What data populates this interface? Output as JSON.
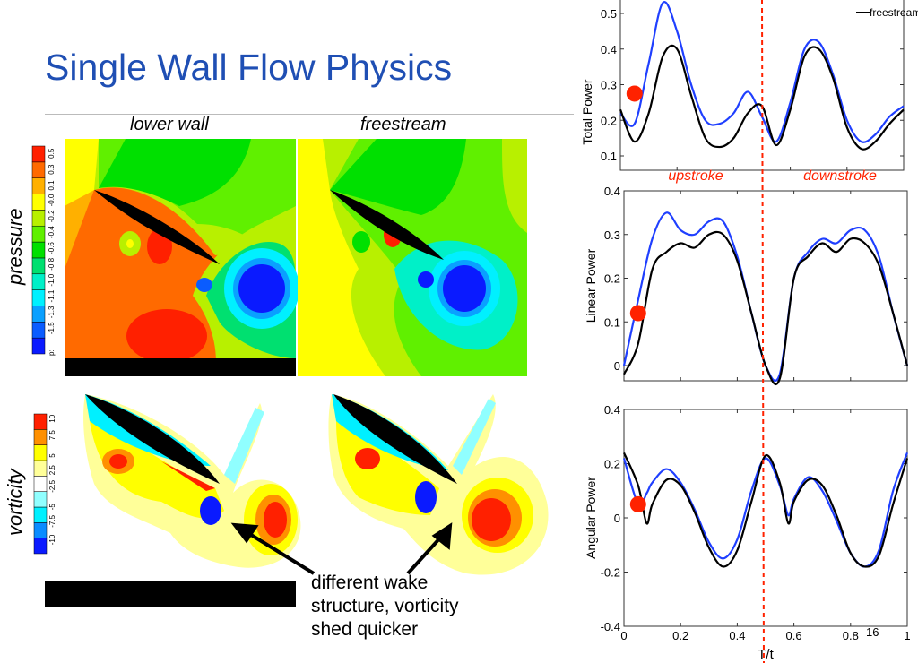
{
  "slide": {
    "title": "Single Wall Flow Physics",
    "column_labels": [
      "lower wall",
      "freestream"
    ],
    "row_labels": [
      "pressure",
      "vorticity"
    ],
    "pressure_colorbar": {
      "prefix": "p:",
      "ticks": [
        "-1.5",
        "-1.3",
        "-1.1",
        "-1.0",
        "-0.8",
        "-0.6",
        "-0.4",
        "-0.2",
        "-0.0",
        "0.1",
        "0.3",
        "0.5"
      ],
      "colors": [
        "#0a1aff",
        "#0a5cff",
        "#0aa0ff",
        "#00f0ff",
        "#00f0c8",
        "#00e070",
        "#00e000",
        "#60f000",
        "#b8f000",
        "#ffff00",
        "#ffb000",
        "#ff6a00",
        "#ff2000"
      ]
    },
    "vorticity_colorbar": {
      "ticks": [
        "-10",
        "-7.5",
        "-5",
        "-2.5",
        "2.5",
        "5",
        "7.5",
        "10"
      ],
      "colors": [
        "#0a1aff",
        "#0a8cff",
        "#00f0ff",
        "#90ffff",
        "#ffffff",
        "#ffff99",
        "#ffff00",
        "#ff9000",
        "#ff2000"
      ]
    },
    "annotation": [
      "different wake",
      "structure, vorticity",
      "shed quicker"
    ],
    "page_number": "16"
  },
  "chart_data": [
    {
      "type": "line",
      "ylabel": "Total Power",
      "xlabel": "",
      "xlim": [
        0,
        1
      ],
      "ylim": [
        0.06,
        0.55
      ],
      "yticks": [
        "0.1",
        "0.2",
        "0.3",
        "0.4",
        "0.5"
      ],
      "ytick_values": [
        0.1,
        0.2,
        0.3,
        0.4,
        0.5
      ],
      "legend": {
        "entries": [
          "freestream"
        ],
        "placement": "top-right"
      },
      "annotations": [
        "upstroke",
        "downstroke"
      ],
      "marker": {
        "x": 0.05,
        "y": 0.275,
        "color": "#ff2200"
      },
      "divider_x": 0.5,
      "x": [
        0,
        0.05,
        0.1,
        0.15,
        0.2,
        0.25,
        0.3,
        0.35,
        0.4,
        0.45,
        0.5,
        0.55,
        0.6,
        0.65,
        0.7,
        0.75,
        0.8,
        0.85,
        0.9,
        0.95,
        1
      ],
      "series": [
        {
          "color": "#1f3fff",
          "values": [
            0.22,
            0.19,
            0.36,
            0.53,
            0.45,
            0.3,
            0.2,
            0.19,
            0.22,
            0.28,
            0.21,
            0.14,
            0.25,
            0.4,
            0.42,
            0.33,
            0.2,
            0.14,
            0.16,
            0.21,
            0.24
          ]
        },
        {
          "name": "freestream",
          "color": "#000000",
          "values": [
            0.23,
            0.14,
            0.22,
            0.38,
            0.4,
            0.27,
            0.15,
            0.125,
            0.15,
            0.22,
            0.24,
            0.13,
            0.23,
            0.38,
            0.4,
            0.32,
            0.18,
            0.12,
            0.14,
            0.19,
            0.23
          ]
        }
      ]
    },
    {
      "type": "line",
      "ylabel": "Linear Power",
      "xlabel": "",
      "xlim": [
        0,
        1
      ],
      "ylim": [
        -0.035,
        0.4
      ],
      "yticks": [
        "0",
        "0.1",
        "0.2",
        "0.3",
        "0.4"
      ],
      "ytick_values": [
        0,
        0.1,
        0.2,
        0.3,
        0.4
      ],
      "marker": {
        "x": 0.05,
        "y": 0.12,
        "color": "#ff2200"
      },
      "divider_x": 0.5,
      "x": [
        0,
        0.05,
        0.1,
        0.15,
        0.2,
        0.25,
        0.3,
        0.35,
        0.4,
        0.45,
        0.5,
        0.55,
        0.6,
        0.65,
        0.7,
        0.75,
        0.8,
        0.85,
        0.9,
        0.95,
        1
      ],
      "series": [
        {
          "color": "#1f3fff",
          "values": [
            0,
            0.15,
            0.29,
            0.35,
            0.31,
            0.3,
            0.33,
            0.33,
            0.25,
            0.12,
            0.0,
            -0.02,
            0.2,
            0.26,
            0.29,
            0.28,
            0.31,
            0.31,
            0.25,
            0.12,
            0
          ]
        },
        {
          "color": "#000000",
          "values": [
            -0.02,
            0.05,
            0.22,
            0.26,
            0.28,
            0.27,
            0.3,
            0.3,
            0.24,
            0.12,
            0.0,
            -0.03,
            0.2,
            0.25,
            0.28,
            0.26,
            0.29,
            0.28,
            0.23,
            0.12,
            0
          ]
        }
      ]
    },
    {
      "type": "line",
      "ylabel": "Angular Power",
      "xlabel": "T/t",
      "xlim": [
        0,
        1
      ],
      "ylim": [
        -0.4,
        0.4
      ],
      "yticks": [
        "-0.4",
        "-0.2",
        "0",
        "0.2",
        "0.4"
      ],
      "ytick_values": [
        -0.4,
        -0.2,
        0,
        0.2,
        0.4
      ],
      "xticks": [
        "0",
        "0.2",
        "0.4",
        "0.6",
        "0.8",
        "1"
      ],
      "xtick_values": [
        0,
        0.2,
        0.4,
        0.6,
        0.8,
        1
      ],
      "marker": {
        "x": 0.05,
        "y": 0.05,
        "color": "#ff2200"
      },
      "divider_x": 0.5,
      "x": [
        0,
        0.05,
        0.08,
        0.1,
        0.15,
        0.2,
        0.25,
        0.3,
        0.35,
        0.4,
        0.45,
        0.5,
        0.55,
        0.58,
        0.6,
        0.65,
        0.7,
        0.75,
        0.8,
        0.85,
        0.9,
        0.95,
        1
      ],
      "series": [
        {
          "color": "#1f3fff",
          "values": [
            0.22,
            0.05,
            0.09,
            0.13,
            0.18,
            0.13,
            0.03,
            -0.09,
            -0.15,
            -0.08,
            0.1,
            0.22,
            0.12,
            0.01,
            0.07,
            0.15,
            0.1,
            -0.01,
            -0.13,
            -0.18,
            -0.12,
            0.1,
            0.24
          ]
        },
        {
          "color": "#000000",
          "values": [
            0.24,
            0.12,
            -0.02,
            0.05,
            0.14,
            0.12,
            0.02,
            -0.11,
            -0.18,
            -0.12,
            0.06,
            0.23,
            0.13,
            -0.02,
            0.06,
            0.14,
            0.12,
            0.01,
            -0.13,
            -0.18,
            -0.14,
            0.05,
            0.22
          ]
        }
      ]
    }
  ]
}
